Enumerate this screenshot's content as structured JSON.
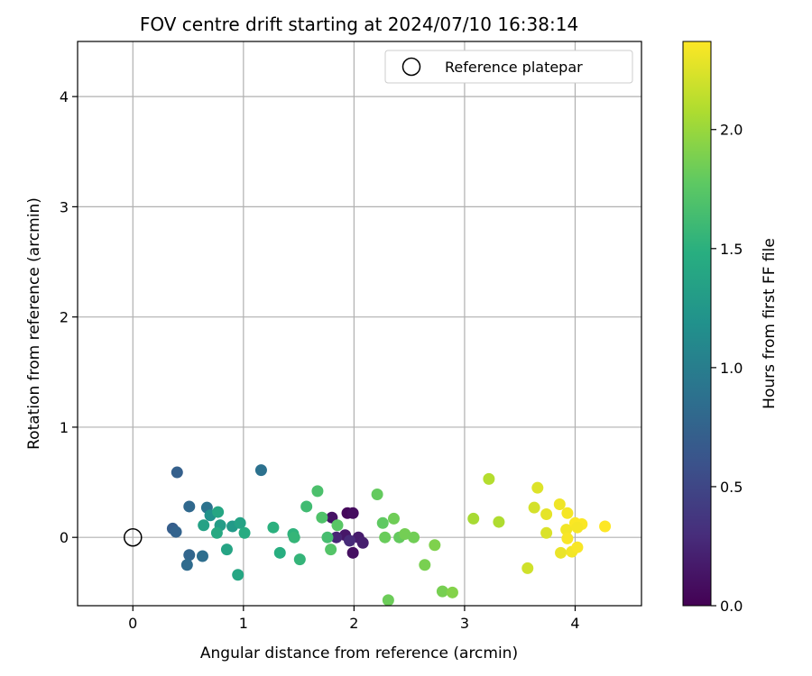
{
  "chart_data": {
    "type": "scatter",
    "title": "FOV centre drift starting at 2024/07/10 16:38:14",
    "xlabel": "Angular distance from reference (arcmin)",
    "ylabel": "Rotation from reference (arcmin)",
    "xlim": [
      -0.5,
      4.6
    ],
    "ylim": [
      -0.62,
      4.5
    ],
    "x_ticks": [
      0,
      1,
      2,
      3,
      4
    ],
    "y_ticks": [
      0,
      1,
      2,
      3,
      4
    ],
    "grid": true,
    "legend": {
      "position": "top-right",
      "entries": [
        "Reference platepar"
      ]
    },
    "reference_point": {
      "x": 0,
      "y": 0,
      "label": "Reference platepar"
    },
    "colorbar": {
      "label": "Hours from first FF file",
      "range": [
        0,
        2.37
      ],
      "ticks": [
        0.0,
        0.5,
        1.0,
        1.5,
        2.0
      ],
      "tick_labels": [
        "0.0",
        "0.5",
        "1.0",
        "1.5",
        "2.0"
      ],
      "colormap": "viridis"
    },
    "points": [
      {
        "x": 1.94,
        "y": 0.22,
        "h": 0.05
      },
      {
        "x": 1.99,
        "y": 0.22,
        "h": 0.08
      },
      {
        "x": 1.8,
        "y": 0.18,
        "h": 0.12
      },
      {
        "x": 1.92,
        "y": 0.02,
        "h": 0.15
      },
      {
        "x": 1.99,
        "y": -0.14,
        "h": 0.1
      },
      {
        "x": 2.04,
        "y": 0.0,
        "h": 0.18
      },
      {
        "x": 2.08,
        "y": -0.05,
        "h": 0.2
      },
      {
        "x": 1.84,
        "y": 0.0,
        "h": 0.25
      },
      {
        "x": 1.96,
        "y": -0.03,
        "h": 0.28
      },
      {
        "x": 0.4,
        "y": 0.59,
        "h": 0.72
      },
      {
        "x": 0.51,
        "y": 0.28,
        "h": 0.8
      },
      {
        "x": 0.36,
        "y": 0.08,
        "h": 0.7
      },
      {
        "x": 0.39,
        "y": 0.05,
        "h": 0.75
      },
      {
        "x": 0.51,
        "y": -0.16,
        "h": 0.78
      },
      {
        "x": 0.49,
        "y": -0.25,
        "h": 0.82
      },
      {
        "x": 0.63,
        "y": -0.17,
        "h": 0.85
      },
      {
        "x": 0.67,
        "y": 0.27,
        "h": 0.9
      },
      {
        "x": 1.16,
        "y": 0.61,
        "h": 0.88
      },
      {
        "x": 0.7,
        "y": 0.2,
        "h": 1.2
      },
      {
        "x": 0.64,
        "y": 0.11,
        "h": 1.35
      },
      {
        "x": 0.77,
        "y": 0.23,
        "h": 1.4
      },
      {
        "x": 0.79,
        "y": 0.11,
        "h": 1.3
      },
      {
        "x": 0.76,
        "y": 0.04,
        "h": 1.42
      },
      {
        "x": 0.85,
        "y": -0.11,
        "h": 1.38
      },
      {
        "x": 0.9,
        "y": 0.1,
        "h": 1.28
      },
      {
        "x": 0.97,
        "y": 0.13,
        "h": 1.36
      },
      {
        "x": 1.01,
        "y": 0.04,
        "h": 1.45
      },
      {
        "x": 0.95,
        "y": -0.34,
        "h": 1.4
      },
      {
        "x": 1.27,
        "y": 0.09,
        "h": 1.5
      },
      {
        "x": 1.33,
        "y": -0.14,
        "h": 1.48
      },
      {
        "x": 1.45,
        "y": 0.03,
        "h": 1.52
      },
      {
        "x": 1.46,
        "y": 0.0,
        "h": 1.56
      },
      {
        "x": 1.51,
        "y": -0.2,
        "h": 1.55
      },
      {
        "x": 1.57,
        "y": 0.28,
        "h": 1.62
      },
      {
        "x": 1.67,
        "y": 0.42,
        "h": 1.68
      },
      {
        "x": 1.71,
        "y": 0.18,
        "h": 1.7
      },
      {
        "x": 1.76,
        "y": 0.0,
        "h": 1.65
      },
      {
        "x": 1.79,
        "y": -0.11,
        "h": 1.72
      },
      {
        "x": 1.85,
        "y": 0.11,
        "h": 1.75
      },
      {
        "x": 2.21,
        "y": 0.39,
        "h": 1.8
      },
      {
        "x": 2.26,
        "y": 0.13,
        "h": 1.78
      },
      {
        "x": 2.28,
        "y": 0.0,
        "h": 1.82
      },
      {
        "x": 2.36,
        "y": 0.17,
        "h": 1.84
      },
      {
        "x": 2.41,
        "y": 0.0,
        "h": 1.8
      },
      {
        "x": 2.46,
        "y": 0.03,
        "h": 1.86
      },
      {
        "x": 2.54,
        "y": 0.0,
        "h": 1.85
      },
      {
        "x": 2.31,
        "y": -0.57,
        "h": 1.83
      },
      {
        "x": 2.64,
        "y": -0.25,
        "h": 1.88
      },
      {
        "x": 2.73,
        "y": -0.07,
        "h": 1.9
      },
      {
        "x": 2.8,
        "y": -0.49,
        "h": 1.87
      },
      {
        "x": 2.89,
        "y": -0.5,
        "h": 1.92
      },
      {
        "x": 3.08,
        "y": 0.17,
        "h": 2.05
      },
      {
        "x": 3.22,
        "y": 0.53,
        "h": 2.1
      },
      {
        "x": 3.31,
        "y": 0.14,
        "h": 2.08
      },
      {
        "x": 3.57,
        "y": -0.28,
        "h": 2.2
      },
      {
        "x": 3.63,
        "y": 0.27,
        "h": 2.22
      },
      {
        "x": 3.66,
        "y": 0.45,
        "h": 2.25
      },
      {
        "x": 3.74,
        "y": 0.21,
        "h": 2.28
      },
      {
        "x": 3.74,
        "y": 0.04,
        "h": 2.24
      },
      {
        "x": 3.86,
        "y": 0.3,
        "h": 2.32
      },
      {
        "x": 3.87,
        "y": -0.14,
        "h": 2.3
      },
      {
        "x": 3.92,
        "y": 0.07,
        "h": 2.33
      },
      {
        "x": 3.93,
        "y": -0.01,
        "h": 2.35
      },
      {
        "x": 3.93,
        "y": 0.22,
        "h": 2.34
      },
      {
        "x": 3.97,
        "y": -0.13,
        "h": 2.33
      },
      {
        "x": 4.0,
        "y": 0.13,
        "h": 2.36
      },
      {
        "x": 4.02,
        "y": -0.09,
        "h": 2.35
      },
      {
        "x": 4.06,
        "y": 0.12,
        "h": 2.36
      },
      {
        "x": 4.02,
        "y": 0.09,
        "h": 2.34
      },
      {
        "x": 4.27,
        "y": 0.1,
        "h": 2.37
      }
    ]
  }
}
